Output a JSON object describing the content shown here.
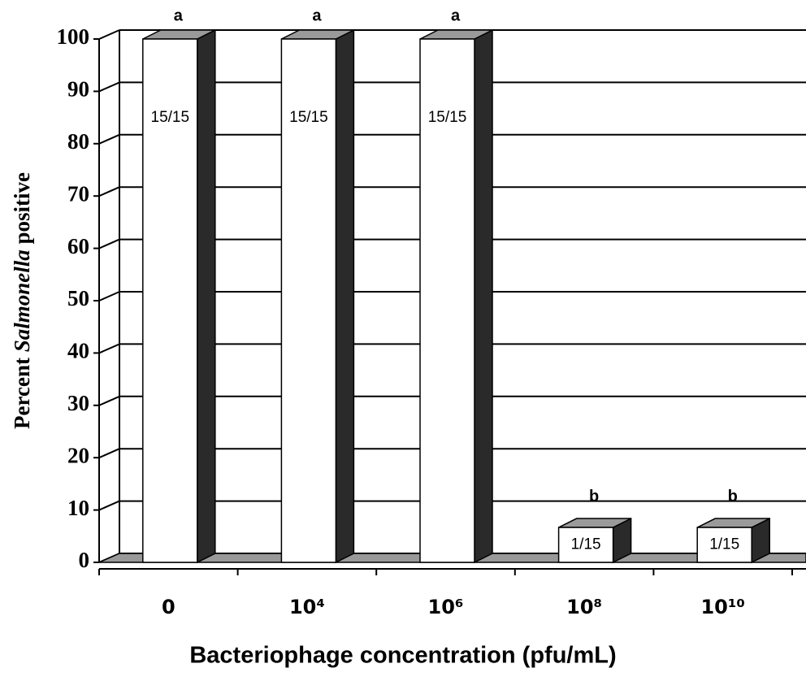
{
  "chart_data": {
    "type": "bar3d",
    "y_label": [
      "Percent ",
      "Salmonella",
      " positive"
    ],
    "x_label": "Bacteriophage concentration (pfu/mL)",
    "categories": [
      "0",
      "10⁴",
      "10⁶",
      "10⁸",
      "10¹⁰"
    ],
    "values": [
      100,
      100,
      100,
      6.67,
      6.67
    ],
    "value_labels": [
      "15/15",
      "15/15",
      "15/15",
      "1/15",
      "1/15"
    ],
    "annotations": [
      "a",
      "a",
      "a",
      "b",
      "b"
    ],
    "ylim": [
      0,
      100
    ],
    "yticks": [
      0,
      10,
      20,
      30,
      40,
      50,
      60,
      70,
      80,
      90,
      100
    ],
    "grid": true,
    "color": "#ffffff"
  }
}
